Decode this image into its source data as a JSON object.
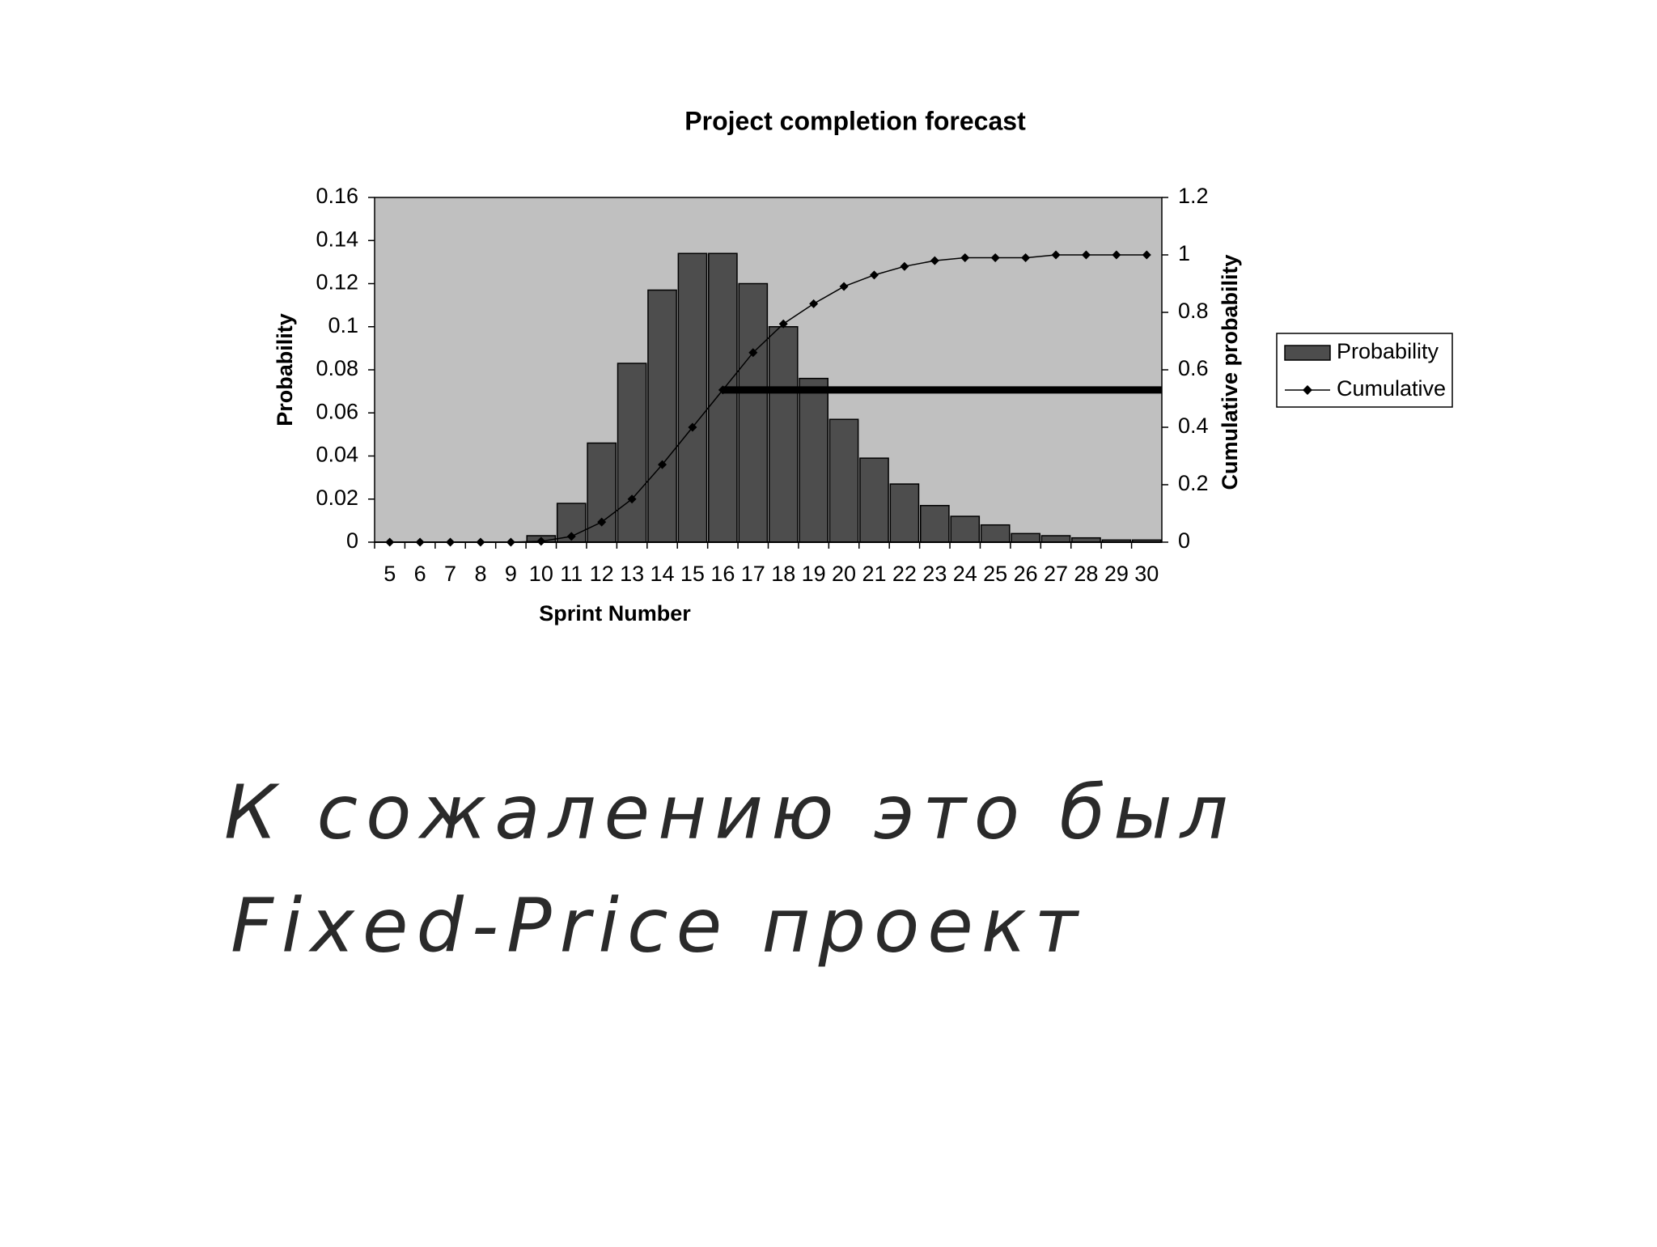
{
  "chart_data": {
    "type": "bar_line",
    "title": "Project completion forecast",
    "x_label": "Sprint Number",
    "y_label": "Probability",
    "y2_label": "Cumulative probability",
    "categories": [
      5,
      6,
      7,
      8,
      9,
      10,
      11,
      12,
      13,
      14,
      15,
      16,
      17,
      18,
      19,
      20,
      21,
      22,
      23,
      24,
      25,
      26,
      27,
      28,
      29,
      30
    ],
    "series": [
      {
        "name": "Probability",
        "type": "bar",
        "color": "#4d4d4d",
        "values": [
          0,
          0,
          0,
          0,
          0,
          0.003,
          0.018,
          0.046,
          0.083,
          0.117,
          0.134,
          0.134,
          0.12,
          0.1,
          0.076,
          0.057,
          0.039,
          0.027,
          0.017,
          0.012,
          0.008,
          0.004,
          0.003,
          0.002,
          0.001,
          0.001
        ]
      },
      {
        "name": "Cumulative",
        "type": "line",
        "axis": "y2",
        "color": "#000000",
        "values": [
          0,
          0,
          0,
          0,
          0,
          0.003,
          0.02,
          0.07,
          0.15,
          0.27,
          0.4,
          0.53,
          0.66,
          0.76,
          0.83,
          0.89,
          0.93,
          0.96,
          0.98,
          0.99,
          0.99,
          0.99,
          1,
          1,
          1,
          1
        ]
      }
    ],
    "ylim": [
      0,
      0.16
    ],
    "yticks": [
      0,
      0.02,
      0.04,
      0.06,
      0.08,
      0.1,
      0.12,
      0.14,
      0.16
    ],
    "y2lim": [
      0,
      1.2
    ],
    "y2ticks": [
      0,
      0.2,
      0.4,
      0.6,
      0.8,
      1,
      1.2
    ],
    "reference_line": {
      "value": 0.53,
      "axis": "y2",
      "start": 16
    },
    "plot_background": "#c0c0c0",
    "legend": "right"
  },
  "caption": {
    "lines": [
      "К сожалению   это был",
      "Fixed-Price   проект"
    ]
  }
}
